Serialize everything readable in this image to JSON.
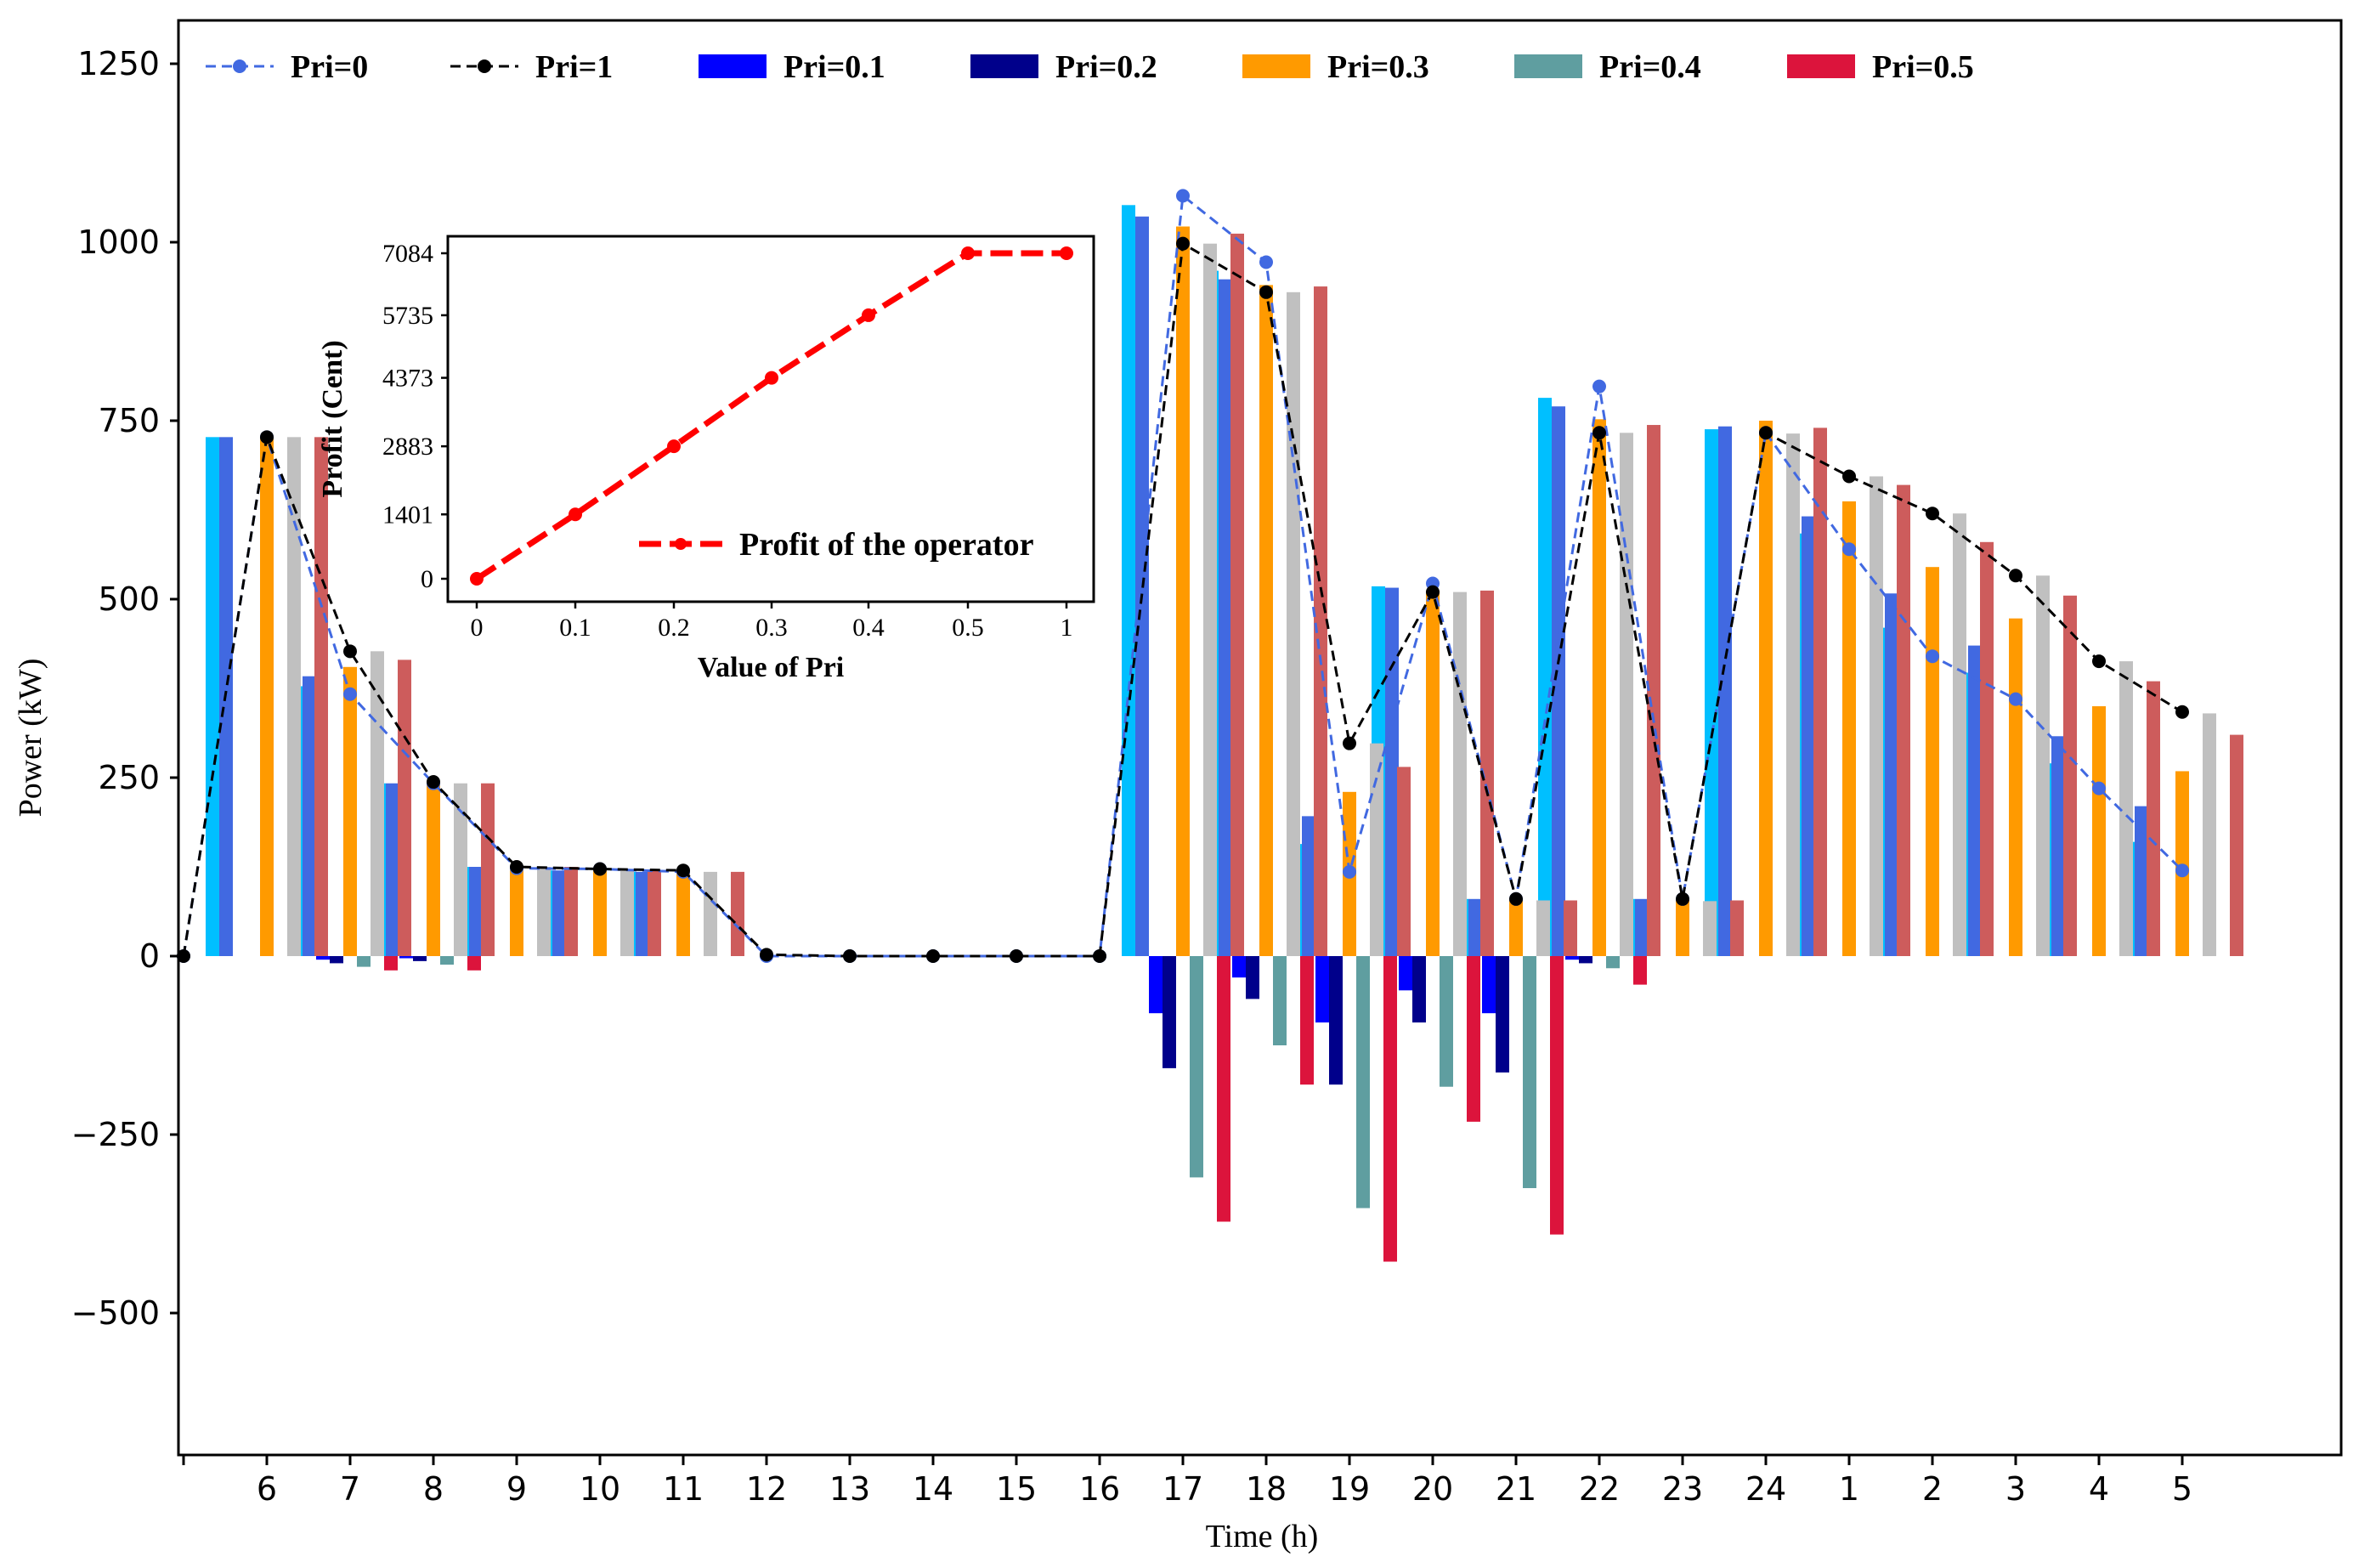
{
  "chart_data": [
    {
      "type": "bar",
      "xlabel": "Time (h)",
      "ylabel": "Power (kW)",
      "ylim": [
        -650,
        1250
      ],
      "yticks": [
        -500,
        -250,
        0,
        250,
        500,
        750,
        1000,
        1250
      ],
      "ytick_labels": [
        "−500",
        "−250",
        "0",
        "250",
        "500",
        "750",
        "1000",
        "1250"
      ],
      "categories": [
        "6",
        "7",
        "8",
        "9",
        "10",
        "11",
        "12",
        "13",
        "14",
        "15",
        "16",
        "17",
        "18",
        "19",
        "20",
        "21",
        "22",
        "23",
        "24",
        "1",
        "2",
        "3",
        "4",
        "5"
      ],
      "legend_position": "top",
      "bar_series": [
        {
          "name": "",
          "color": "#00bfff",
          "values": [
            727,
            378,
            242,
            125,
            120,
            118,
            0,
            0,
            0,
            0,
            0,
            1052,
            960,
            157,
            518,
            80,
            782,
            80,
            738,
            592,
            460,
            397,
            270,
            160
          ]
        },
        {
          "name": "",
          "color": "#4169e1",
          "values": [
            727,
            392,
            242,
            125,
            120,
            118,
            0,
            0,
            0,
            0,
            0,
            1036,
            948,
            196,
            516,
            80,
            770,
            80,
            742,
            616,
            508,
            435,
            308,
            210
          ]
        },
        {
          "name": "Pri=0.1",
          "color": "#0000ff",
          "values": [
            0,
            -5,
            -3,
            0,
            0,
            0,
            0,
            0,
            0,
            0,
            0,
            -80,
            -30,
            -93,
            -48,
            -80,
            -5,
            0,
            0,
            0,
            0,
            0,
            0,
            0
          ]
        },
        {
          "name": "Pri=0.2",
          "color": "#00008b",
          "values": [
            0,
            -10,
            -7,
            0,
            0,
            0,
            0,
            0,
            0,
            0,
            0,
            -157,
            -60,
            -180,
            -93,
            -163,
            -10,
            0,
            0,
            0,
            0,
            0,
            0,
            0
          ]
        },
        {
          "name": "Pri=0.3",
          "color": "#ff9a00",
          "values": [
            727,
            405,
            242,
            125,
            120,
            118,
            0,
            0,
            0,
            0,
            0,
            1022,
            940,
            230,
            512,
            80,
            752,
            80,
            750,
            637,
            545,
            473,
            350,
            259
          ]
        },
        {
          "name": "Pri=0.4",
          "color": "#5f9ea0",
          "values": [
            0,
            -15,
            -12,
            0,
            0,
            0,
            0,
            0,
            0,
            0,
            0,
            -310,
            -125,
            -353,
            -183,
            -325,
            -17,
            0,
            0,
            0,
            0,
            0,
            0,
            0
          ]
        },
        {
          "name": "",
          "color": "#c0c0c0",
          "values": [
            727,
            427,
            242,
            125,
            120,
            118,
            0,
            0,
            0,
            0,
            0,
            998,
            930,
            298,
            510,
            78,
            733,
            77,
            732,
            672,
            620,
            533,
            413,
            340
          ]
        },
        {
          "name": "Pri=0.5",
          "color": "#dc143c",
          "values": [
            0,
            -20,
            -20,
            0,
            0,
            0,
            0,
            0,
            0,
            0,
            0,
            -372,
            -180,
            -428,
            -232,
            -390,
            -40,
            0,
            0,
            0,
            0,
            0,
            0,
            0
          ]
        },
        {
          "name": "",
          "color": "#cd5c5c",
          "values": [
            727,
            415,
            242,
            125,
            120,
            118,
            0,
            0,
            0,
            0,
            0,
            1012,
            938,
            265,
            512,
            78,
            744,
            78,
            740,
            660,
            580,
            505,
            385,
            310
          ]
        }
      ],
      "line_series": [
        {
          "name": "Pri=0",
          "color": "#4169e1",
          "x_start": -1,
          "values": [
            0,
            727,
            367,
            242,
            123,
            122,
            118,
            0,
            0,
            0,
            0,
            0,
            1065,
            972,
            118,
            522,
            80,
            798,
            80,
            733,
            570,
            420,
            360,
            235,
            120
          ]
        },
        {
          "name": "Pri=1",
          "color": "#000000",
          "x_start": -1,
          "values": [
            0,
            727,
            427,
            244,
            125,
            122,
            120,
            2,
            0,
            0,
            0,
            0,
            998,
            930,
            298,
            510,
            80,
            733,
            80,
            733,
            672,
            620,
            533,
            413,
            342
          ]
        }
      ],
      "legend": [
        {
          "label": "Pri=0",
          "kind": "line",
          "color": "#4169e1"
        },
        {
          "label": "Pri=1",
          "kind": "line",
          "color": "#000000"
        },
        {
          "label": "Pri=0.1",
          "kind": "patch",
          "color": "#0000ff"
        },
        {
          "label": "Pri=0.2",
          "kind": "patch",
          "color": "#00008b"
        },
        {
          "label": "Pri=0.3",
          "kind": "patch",
          "color": "#ff9a00"
        },
        {
          "label": "Pri=0.4",
          "kind": "patch",
          "color": "#5f9ea0"
        },
        {
          "label": "Pri=0.5",
          "kind": "patch",
          "color": "#dc143c"
        }
      ]
    },
    {
      "type": "line",
      "title": "",
      "xlabel": "Value of Pri",
      "ylabel": "Profit (Cent)",
      "categories": [
        "0",
        "0.1",
        "0.2",
        "0.3",
        "0.4",
        "0.5",
        "1"
      ],
      "values": [
        0,
        1401,
        2883,
        4373,
        5735,
        7084,
        7084
      ],
      "yticks": [
        0,
        1401,
        2883,
        4373,
        5735,
        7084
      ],
      "ylim": [
        -750,
        7450
      ],
      "color": "#ff0000",
      "legend": "Profit of the operator",
      "legend_position": "bottom-right"
    }
  ]
}
